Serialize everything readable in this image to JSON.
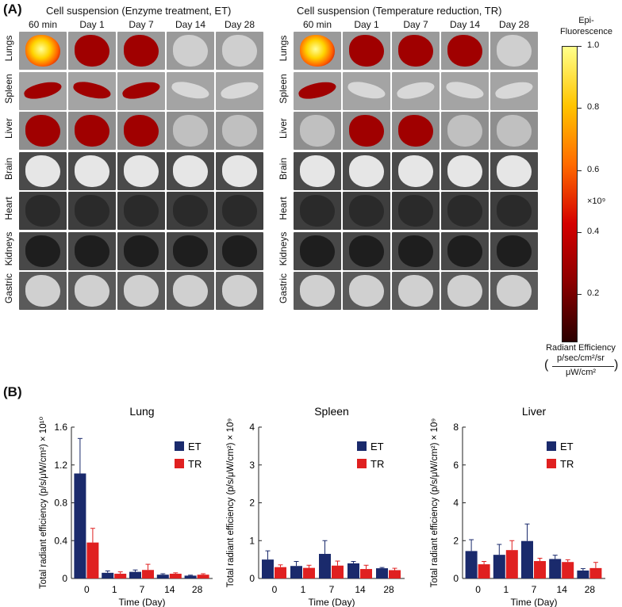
{
  "panel_a": {
    "label": "(A)",
    "et_title": "Cell suspension (Enzyme treatment, ET)",
    "tr_title": "Cell suspension (Temperature reduction, TR)",
    "days": [
      "60 min",
      "Day 1",
      "Day 7",
      "Day 14",
      "Day 28"
    ],
    "organs": [
      "Lungs",
      "Spleen",
      "Liver",
      "Brain",
      "Heart",
      "Kidneys",
      "Gastric"
    ],
    "colorbar": {
      "title_line1": "Epi-",
      "title_line2": "Fluorescence",
      "ticks": [
        "1.0",
        "0.8",
        "0.6",
        "0.4",
        "0.2"
      ],
      "tick_values": [
        1.0,
        0.8,
        0.6,
        0.4,
        0.2
      ],
      "range": [
        0.05,
        1.0
      ],
      "multiplier": "×10⁹",
      "unit_line1": "Radiant Efficiency",
      "unit_line2": "p/sec/cm²/sr",
      "unit_line3": "μW/cm²",
      "colors": [
        "#2a0000",
        "#8b0000",
        "#d40000",
        "#ff6a00",
        "#ffc400",
        "#ffff8a"
      ]
    }
  },
  "panel_b": {
    "label": "(B)"
  },
  "chart_data": [
    {
      "type": "bar",
      "title": "Lung",
      "xlabel": "Time (Day)",
      "ylabel": "Total radiant efficiency (p/s/μW/cm²) × 10¹⁰",
      "categories": [
        "0",
        "1",
        "7",
        "14",
        "28"
      ],
      "ylim": [
        0,
        1.6
      ],
      "yticks": [
        "0",
        "0.4",
        "0.8",
        "1.2",
        "1.6"
      ],
      "series": [
        {
          "name": "ET",
          "color": "#1a2a6c",
          "values": [
            1.11,
            0.06,
            0.07,
            0.04,
            0.03
          ],
          "errors": [
            0.37,
            0.02,
            0.02,
            0.01,
            0.005
          ]
        },
        {
          "name": "TR",
          "color": "#e02020",
          "values": [
            0.38,
            0.05,
            0.09,
            0.05,
            0.04
          ],
          "errors": [
            0.15,
            0.02,
            0.06,
            0.01,
            0.01
          ]
        }
      ]
    },
    {
      "type": "bar",
      "title": "Spleen",
      "xlabel": "Time (Day)",
      "ylabel": "Total radiant efficiency (p/s/μW/cm²) × 10⁹",
      "categories": [
        "0",
        "1",
        "7",
        "14",
        "28"
      ],
      "ylim": [
        0,
        4
      ],
      "yticks": [
        "0",
        "1",
        "2",
        "3",
        "4"
      ],
      "series": [
        {
          "name": "ET",
          "color": "#1a2a6c",
          "values": [
            0.5,
            0.33,
            0.65,
            0.4,
            0.27
          ],
          "errors": [
            0.23,
            0.12,
            0.35,
            0.05,
            0.02
          ]
        },
        {
          "name": "TR",
          "color": "#e02020",
          "values": [
            0.3,
            0.28,
            0.34,
            0.25,
            0.22
          ],
          "errors": [
            0.06,
            0.07,
            0.12,
            0.1,
            0.05
          ]
        }
      ]
    },
    {
      "type": "bar",
      "title": "Liver",
      "xlabel": "Time (Day)",
      "ylabel": "Total radiant efficiency (p/s/μW/cm²) × 10⁹",
      "categories": [
        "0",
        "1",
        "7",
        "14",
        "28"
      ],
      "ylim": [
        0,
        8
      ],
      "yticks": [
        "0",
        "2",
        "4",
        "6",
        "8"
      ],
      "series": [
        {
          "name": "ET",
          "color": "#1a2a6c",
          "values": [
            1.45,
            1.25,
            1.98,
            1.03,
            0.42
          ],
          "errors": [
            0.6,
            0.55,
            0.9,
            0.2,
            0.1
          ]
        },
        {
          "name": "TR",
          "color": "#e02020",
          "values": [
            0.75,
            1.5,
            0.92,
            0.87,
            0.55
          ],
          "errors": [
            0.15,
            0.5,
            0.15,
            0.12,
            0.3
          ]
        }
      ]
    }
  ]
}
